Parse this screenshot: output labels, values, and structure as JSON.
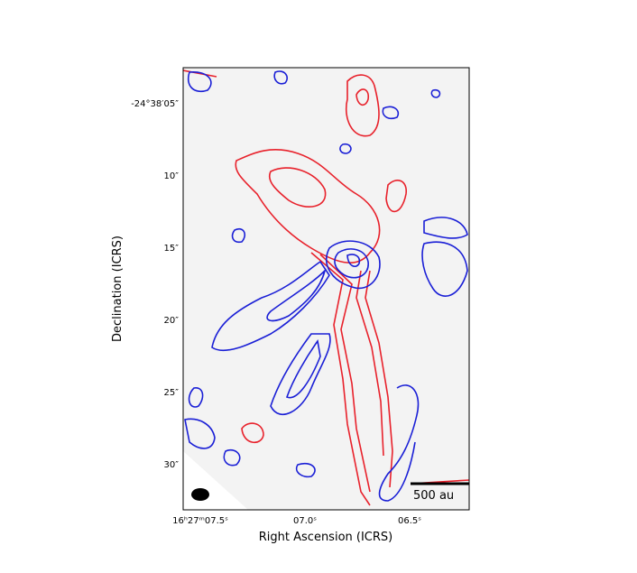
{
  "figure": {
    "xlabel": "Right Ascension (ICRS)",
    "ylabel": "Declination (ICRS)",
    "xticks": [
      "16ʰ27ᵐ07.5ˢ",
      "07.0ˢ",
      "06.5ˢ"
    ],
    "yticks": [
      "-24°38′05″",
      "10″",
      "15″",
      "20″",
      "25″",
      "30″"
    ],
    "scale_bar": "500 au"
  }
}
